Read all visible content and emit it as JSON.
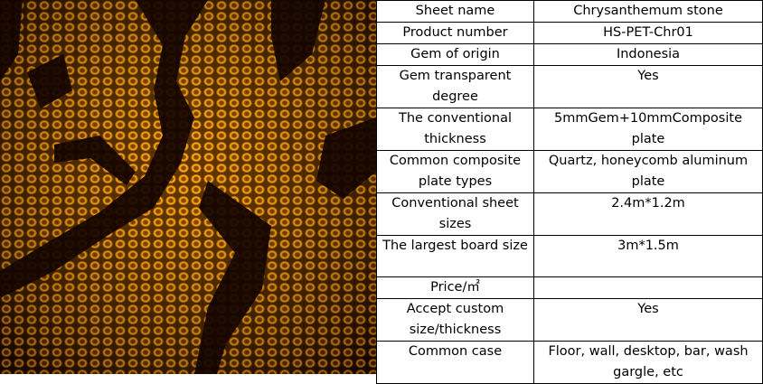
{
  "table": {
    "rows": [
      {
        "label": "Sheet name",
        "value": "Chrysanthemum stone"
      },
      {
        "label": "Product number",
        "value": "HS-PET-Chr01"
      },
      {
        "label": "Gem of origin",
        "value": "Indonesia"
      },
      {
        "label": "Gem transparent degree",
        "value": "Yes"
      },
      {
        "label": "The conventional thickness",
        "value": "5mmGem+10mmComposite plate"
      },
      {
        "label": "Common composite plate types",
        "value": "Quartz, honeycomb aluminum plate"
      },
      {
        "label": "Conventional sheet sizes",
        "value": "2.4m*1.2m"
      },
      {
        "label": "The largest board size",
        "value": "3m*1.5m"
      },
      {
        "label": "Price/㎡"
      },
      {
        "label": "Accept custom size/thickness",
        "value": "Yes"
      },
      {
        "label": "Common case",
        "value": "Floor, wall, desktop, bar, wash gargle, etc"
      }
    ]
  }
}
